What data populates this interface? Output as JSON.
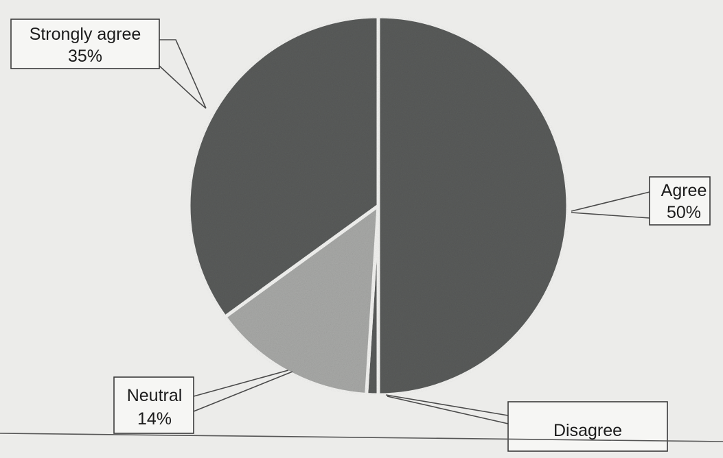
{
  "chart_data": {
    "type": "pie",
    "slices": [
      {
        "label": "Agree",
        "value_label": "50%",
        "value": 50,
        "color": "#5a5c5b"
      },
      {
        "label": "Disagree",
        "value_label": "",
        "value": 1,
        "color": "#5a5c5b"
      },
      {
        "label": "Neutral",
        "value_label": "14%",
        "value": 14,
        "color": "#a9aaa8"
      },
      {
        "label": "Strongly agree",
        "value_label": "35%",
        "value": 35,
        "color": "#5a5c5b"
      }
    ]
  }
}
